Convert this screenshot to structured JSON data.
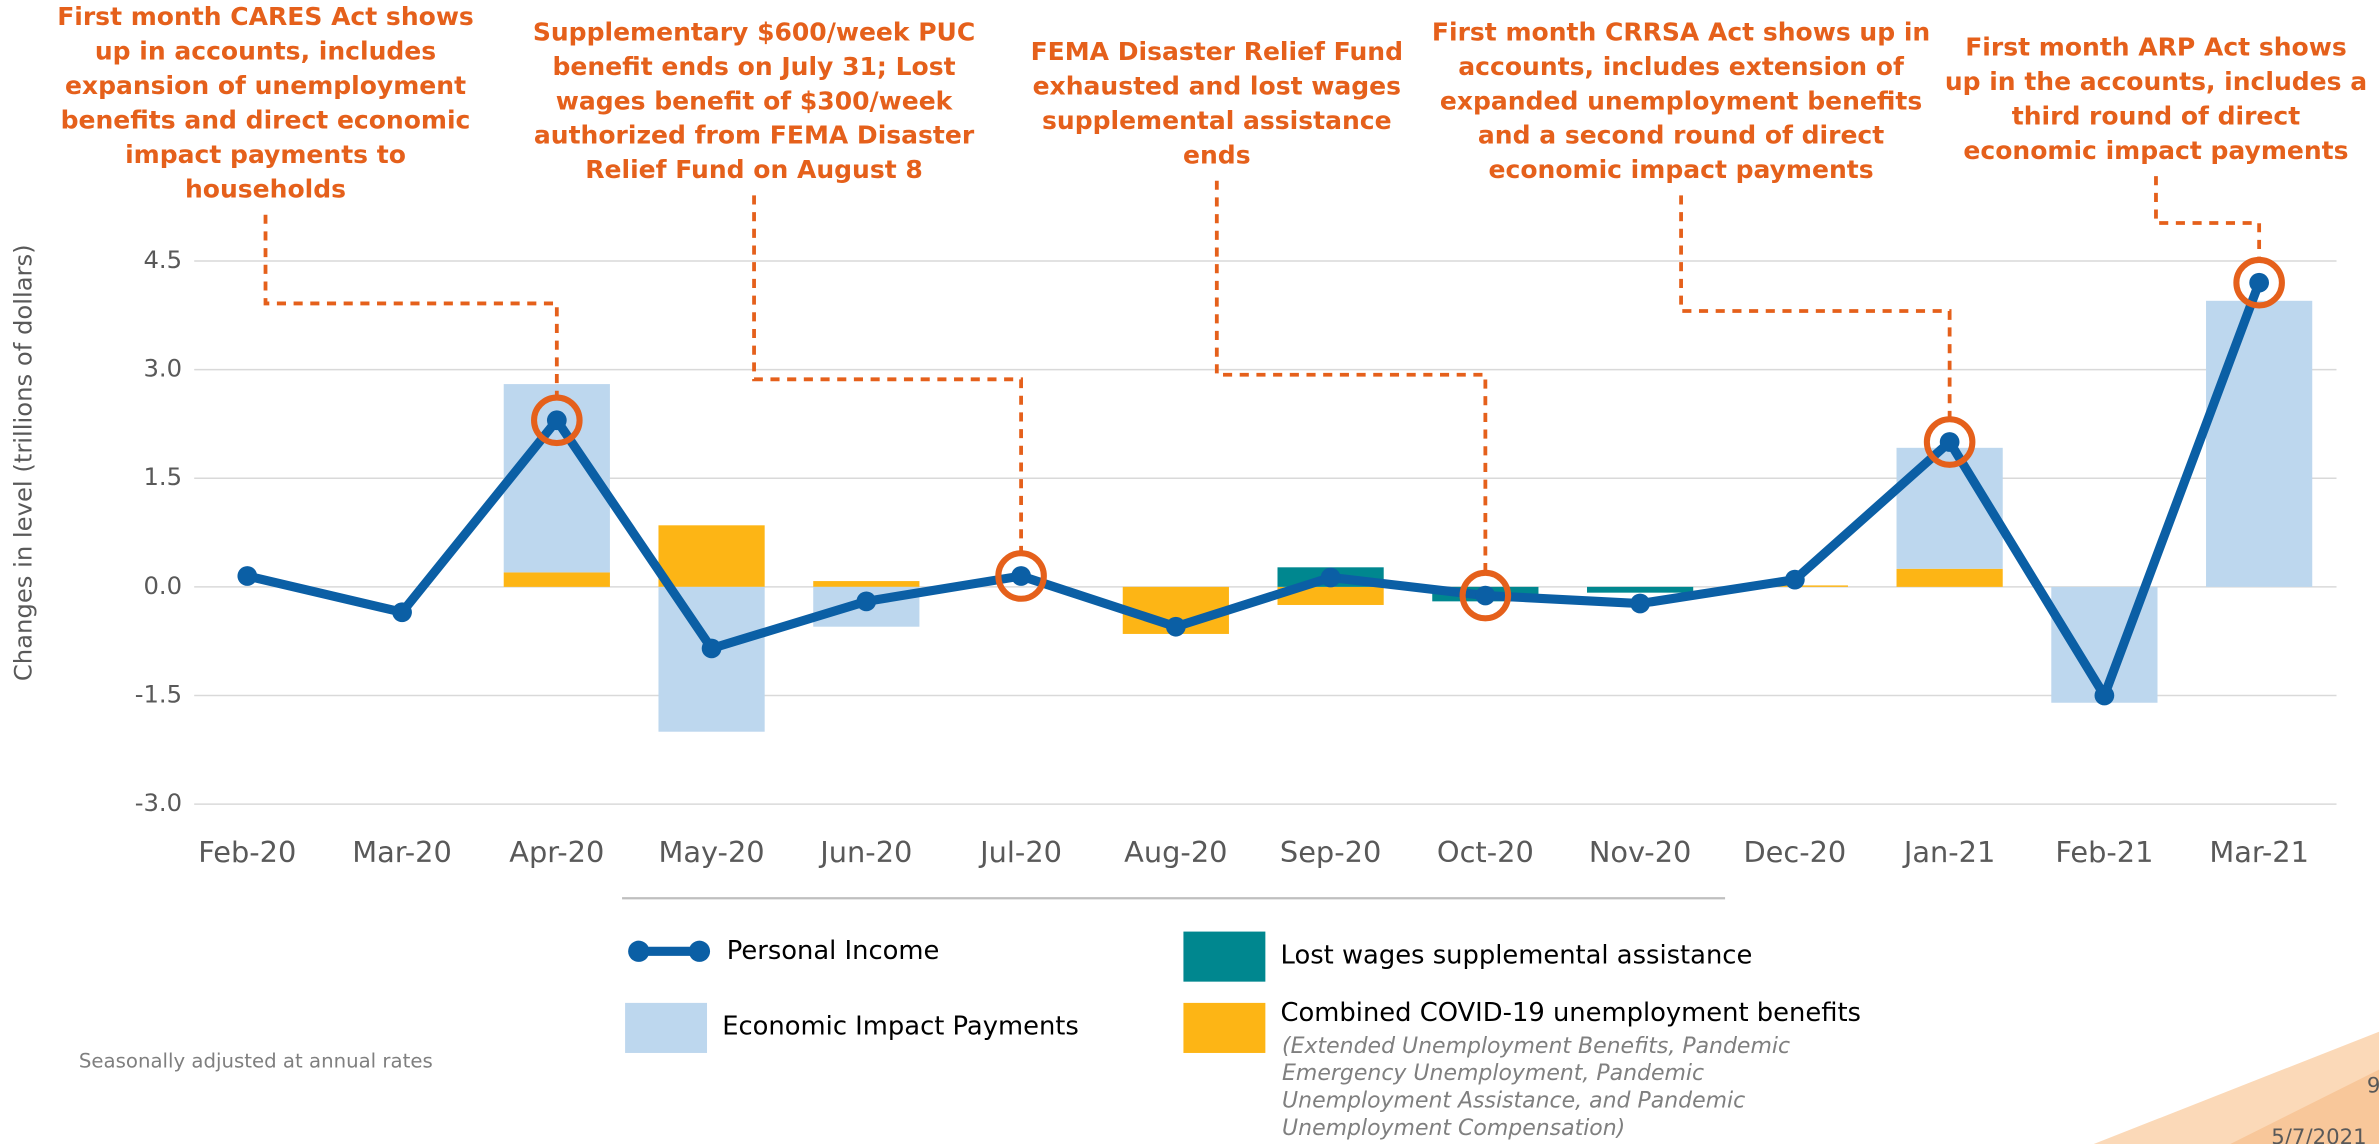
{
  "chart_data": {
    "type": "bar",
    "y_axis_label": "Changes in level (trillions of dollars)",
    "categories": [
      "Feb-20",
      "Mar-20",
      "Apr-20",
      "May-20",
      "Jun-20",
      "Jul-20",
      "Aug-20",
      "Sep-20",
      "Oct-20",
      "Nov-20",
      "Dec-20",
      "Jan-21",
      "Feb-21",
      "Mar-21"
    ],
    "series": [
      {
        "name": "Personal Income",
        "kind": "line",
        "color": "#0B5FA5",
        "values": [
          0.15,
          -0.35,
          2.3,
          -0.85,
          -0.2,
          0.15,
          -0.55,
          0.13,
          -0.12,
          -0.23,
          0.1,
          2.0,
          -1.5,
          4.2
        ]
      },
      {
        "name": "Lost wages supplemental assistance",
        "kind": "bar",
        "color": "#00878F",
        "values": [
          0,
          0,
          0,
          0,
          0,
          0,
          0,
          0.27,
          -0.2,
          -0.08,
          0,
          0,
          0,
          0
        ]
      },
      {
        "name": "Economic Impact Payments",
        "kind": "bar",
        "color": "#BDD7EE",
        "values": [
          0,
          0,
          2.6,
          -2.0,
          -0.55,
          0,
          0,
          0,
          0,
          0,
          0,
          1.67,
          -1.6,
          3.95
        ]
      },
      {
        "name": "Combined COVID-19 unemployment benefits",
        "kind": "bar",
        "color": "#FDB515",
        "values": [
          0,
          0,
          0.2,
          0.85,
          0.08,
          0,
          -0.65,
          -0.25,
          0,
          0,
          0.02,
          0.25,
          0,
          0
        ]
      }
    ],
    "legend_note": [
      "(Extended Unemployment Benefits, Pandemic",
      "Emergency Unemployment, Pandemic",
      "Unemployment Assistance, and Pandemic",
      "Unemployment Compensation)"
    ],
    "ylim": [
      -3.0,
      4.5
    ],
    "yticks": [
      {
        "value": -3,
        "label": "-3.0"
      },
      -1.5,
      {
        "value": 0,
        "label": "0.0"
      },
      1.5,
      {
        "value": 3,
        "label": "3.0"
      },
      4.5
    ],
    "grid": true,
    "annotations": [
      [
        "First month CARES Act shows",
        "up in accounts, includes",
        "expansion of unemployment",
        "benefits and direct economic",
        "impact payments to",
        "households"
      ],
      [
        "Supplementary $600/week PUC",
        "benefit ends on July 31; Lost",
        "wages benefit of $300/week",
        "authorized from FEMA Disaster",
        "Relief Fund on August 8"
      ],
      [
        "FEMA Disaster Relief Fund",
        "exhausted and lost wages",
        "supplemental assistance",
        "ends"
      ],
      [
        "First month CRRSA Act shows up in",
        "accounts, includes extension of",
        "expanded unemployment benefits",
        "and a second round of direct",
        "economic impact payments"
      ],
      [
        "First month ARP Act shows",
        "up in the accounts, includes a",
        "third round of direct",
        "economic impact payments"
      ]
    ]
  },
  "footnote": "Seasonally adjusted at annual rates",
  "page_number": "9",
  "date": "5/7/2021"
}
